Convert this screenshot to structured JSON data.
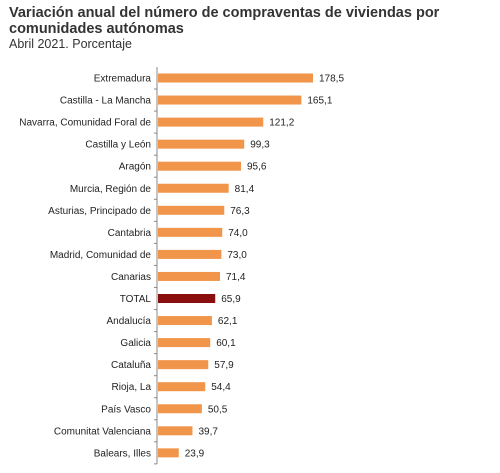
{
  "title": "Variación anual del número de compraventas de viviendas por comunidades autónomas",
  "subtitle": "Abril 2021. Porcentaje",
  "colors": {
    "bar": "#F0954A",
    "highlight": "#8B0E0E",
    "axis": "#888888"
  },
  "chart_data": {
    "type": "bar",
    "orientation": "horizontal",
    "title": "Variación anual del número de compraventas de viviendas por comunidades autónomas",
    "subtitle": "Abril 2021. Porcentaje",
    "categories": [
      "Extremadura",
      "Castilla - La Mancha",
      "Navarra, Comunidad Foral de",
      "Castilla y León",
      "Aragón",
      "Murcia, Región de",
      "Asturias, Principado de",
      "Cantabria",
      "Madrid, Comunidad de",
      "Canarias",
      "TOTAL",
      "Andalucía",
      "Galicia",
      "Cataluña",
      "Rioja, La",
      "País Vasco",
      "Comunitat Valenciana",
      "Balears, Illes"
    ],
    "values": [
      178.5,
      165.1,
      121.2,
      99.3,
      95.6,
      81.4,
      76.3,
      74.0,
      73.0,
      71.4,
      65.9,
      62.1,
      60.1,
      57.9,
      54.4,
      50.5,
      39.7,
      23.9
    ],
    "value_labels": [
      "178,5",
      "165,1",
      "121,2",
      "99,3",
      "95,6",
      "81,4",
      "76,3",
      "74,0",
      "73,0",
      "71,4",
      "65,9",
      "62,1",
      "60,1",
      "57,9",
      "54,4",
      "50,5",
      "39,7",
      "23,9"
    ],
    "highlight": "TOTAL",
    "xlim": [
      0,
      178.5
    ],
    "grid": false,
    "legend": false
  }
}
